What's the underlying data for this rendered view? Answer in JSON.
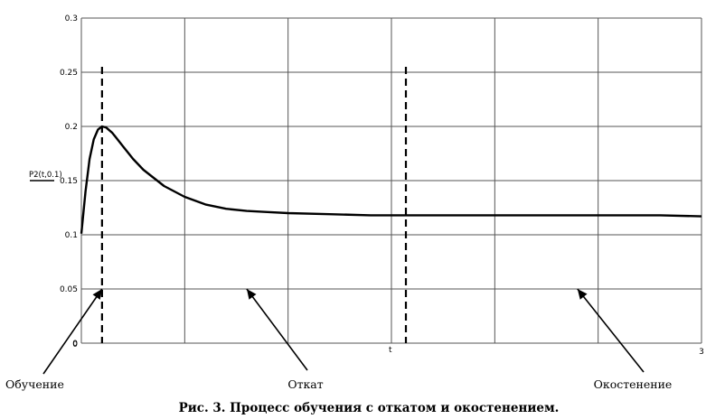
{
  "chart_data": {
    "type": "line",
    "title": "",
    "caption": "Рис. 3. Процесс обучения с откатом и окостенением.",
    "xlabel": "t",
    "ylabel": "P2(t,0.1)",
    "xlim": [
      0,
      3
    ],
    "ylim": [
      0,
      0.3
    ],
    "x_ticks": [
      "0",
      "3"
    ],
    "y_ticks": [
      "0",
      "0.05",
      "0.1",
      "0.15",
      "0.2",
      "0.25",
      "0.3"
    ],
    "grid": true,
    "vertical_lines": [
      0.1,
      1.57
    ],
    "series": [
      {
        "x": [
          0,
          0.02,
          0.04,
          0.06,
          0.08,
          0.1,
          0.12,
          0.15,
          0.2,
          0.25,
          0.3,
          0.4,
          0.5,
          0.6,
          0.7,
          0.8,
          0.9,
          1.0,
          1.2,
          1.4,
          1.6,
          1.8,
          2.0,
          2.2,
          2.4,
          2.6,
          2.8,
          3.0
        ],
        "values": [
          0.101,
          0.14,
          0.17,
          0.188,
          0.197,
          0.2,
          0.199,
          0.194,
          0.182,
          0.17,
          0.16,
          0.145,
          0.135,
          0.128,
          0.124,
          0.122,
          0.121,
          0.12,
          0.119,
          0.118,
          0.118,
          0.118,
          0.118,
          0.118,
          0.118,
          0.118,
          0.118,
          0.117
        ]
      }
    ],
    "annotations": [
      {
        "text": "Обучение",
        "arrow_to": [
          0.1,
          0.05
        ]
      },
      {
        "text": "Откат",
        "arrow_to": [
          0.8,
          0.05
        ]
      },
      {
        "text": "Окостенение",
        "arrow_to": [
          2.4,
          0.05
        ]
      }
    ]
  }
}
